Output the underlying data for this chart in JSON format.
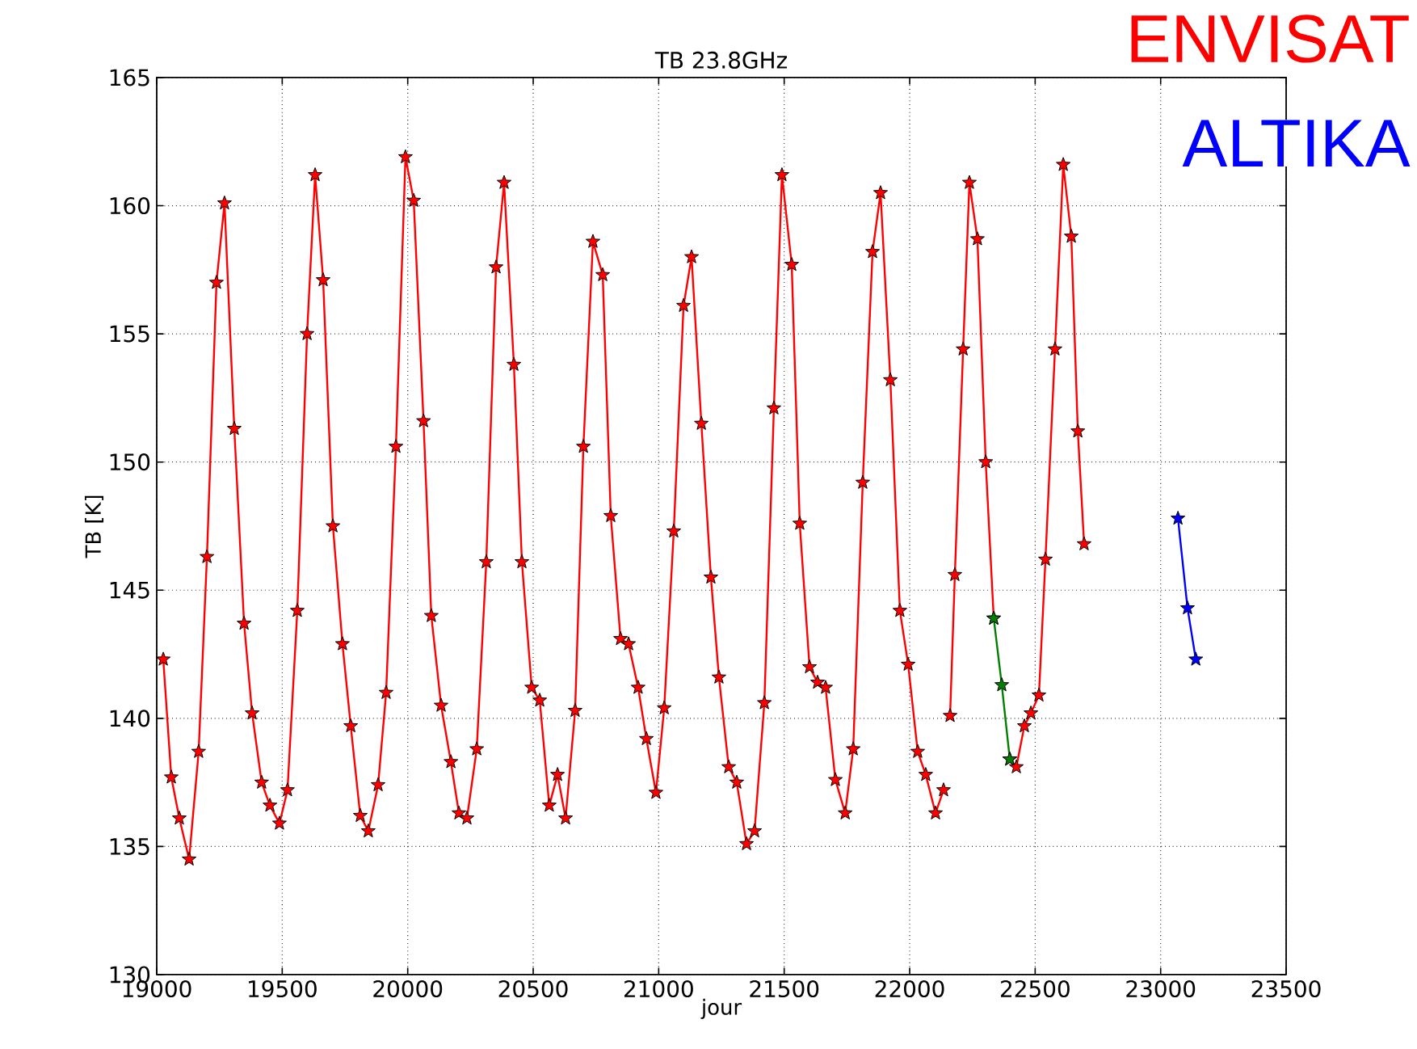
{
  "chart_data": {
    "type": "line",
    "title": "TB 23.8GHz",
    "xlabel": "jour",
    "ylabel": "TB [K]",
    "xlim": [
      19000,
      23500
    ],
    "xticks": [
      19000,
      19500,
      20000,
      20500,
      21000,
      21500,
      22000,
      22500,
      23000,
      23500
    ],
    "ylim": [
      130,
      165
    ],
    "yticks": [
      130,
      135,
      140,
      145,
      150,
      155,
      160,
      165
    ],
    "grid": true,
    "marker": "star",
    "line_style": "solid",
    "series": [
      {
        "name": "ENVISAT",
        "color": "#ff0000",
        "x": [
          19026,
          19058,
          19090,
          19129,
          19167,
          19200,
          19238,
          19270,
          19309,
          19348,
          19380,
          19418,
          19451,
          19489,
          19521,
          19560,
          19599,
          19631,
          19663,
          19702,
          19740,
          19773,
          19811,
          19843,
          19882,
          19914,
          19953,
          19991,
          20024,
          20063,
          20094,
          20133,
          20172,
          20204,
          20236,
          20275,
          20313,
          20352,
          20384,
          20423,
          20455,
          20494,
          20526,
          20564,
          20597,
          20629,
          20667,
          20700,
          20738,
          20777,
          20809,
          20848,
          20880,
          20918,
          20951,
          20989,
          21022,
          21060,
          21099,
          21131,
          21170,
          21208,
          21240,
          21279,
          21311,
          21350,
          21382,
          21421,
          21459,
          21491,
          21530,
          21562,
          21601,
          21633,
          21665,
          21704,
          21743,
          21775,
          21813,
          21852,
          21884,
          21923,
          21961,
          21994,
          22032,
          22064,
          22103,
          22135,
          22148,
          22161,
          22180,
          22213,
          22238,
          22270,
          22303,
          22335,
          22367,
          22399,
          22425,
          22457,
          22483,
          22515,
          22541,
          22579,
          22612,
          22644,
          22670,
          22695
        ],
        "values": [
          142.3,
          137.7,
          136.1,
          134.5,
          138.7,
          146.3,
          157.0,
          160.1,
          151.3,
          143.7,
          140.2,
          137.5,
          136.6,
          135.9,
          137.2,
          144.2,
          155.0,
          161.2,
          157.1,
          147.5,
          142.9,
          139.7,
          136.2,
          135.6,
          137.4,
          141.0,
          150.6,
          161.9,
          160.2,
          151.6,
          144.0,
          140.5,
          138.3,
          136.3,
          136.1,
          138.8,
          146.1,
          157.6,
          160.9,
          153.8,
          146.1,
          141.2,
          140.7,
          136.6,
          137.8,
          136.1,
          140.3,
          150.6,
          158.6,
          157.3,
          147.9,
          143.1,
          142.9,
          141.2,
          139.2,
          137.1,
          140.4,
          147.3,
          156.1,
          158.0,
          151.5,
          145.5,
          141.6,
          138.1,
          137.5,
          135.1,
          135.6,
          140.6,
          152.1,
          161.2,
          157.7,
          147.6,
          142.0,
          141.4,
          141.2,
          137.6,
          136.3,
          138.8,
          149.2,
          158.2,
          160.5,
          153.2,
          144.2,
          142.1,
          138.7,
          137.8,
          136.3,
          137.2,
          null,
          140.1,
          145.6,
          154.4,
          160.9,
          158.7,
          150.0,
          143.9,
          null,
          138.4,
          138.1,
          139.7,
          140.2,
          140.9,
          146.2,
          154.4,
          161.6,
          158.8,
          151.2,
          146.8
        ]
      },
      {
        "color": "#007f00",
        "x": [
          22335,
          22367,
          22399
        ],
        "values": [
          143.9,
          141.3,
          138.4
        ]
      },
      {
        "name": "ALTIKA",
        "color": "#0000ff",
        "x": [
          23069,
          23107,
          23140
        ],
        "values": [
          147.8,
          144.3,
          142.3
        ]
      }
    ]
  }
}
